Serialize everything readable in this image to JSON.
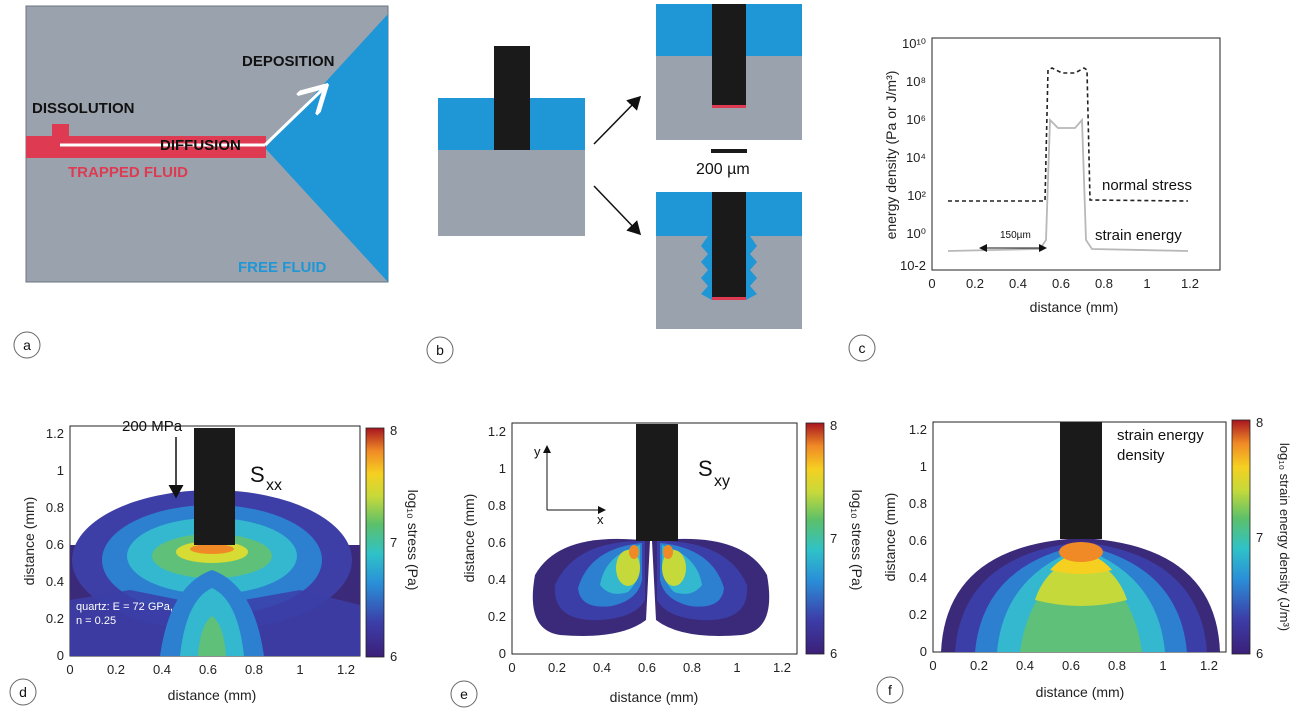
{
  "panel_letters": [
    "a",
    "b",
    "c",
    "d",
    "e",
    "f"
  ],
  "panel_a": {
    "labels": {
      "dissolution": "DISSOLUTION",
      "diffusion": "DIFFUSION",
      "deposition": "DEPOSITION",
      "trapped_fluid": "TRAPPED FLUID",
      "free_fluid": "FREE FLUID"
    },
    "colors": {
      "solid": "#9aa3ad",
      "trapped": "#de3b52",
      "free": "#1f96d6"
    }
  },
  "panel_b": {
    "scale_bar": "200 µm",
    "colors": {
      "fluid": "#1f96d6",
      "solid": "#9aa3ad",
      "indenter": "#1a1a1a",
      "contact": "#de3b52"
    }
  },
  "panel_c": {
    "ylabel": "energy density (Pa or J/m³)",
    "xlabel": "distance (mm)",
    "x_ticks": [
      "0",
      "0.2",
      "0.4",
      "0.6",
      "0.8",
      "1",
      "1.2"
    ],
    "y_ticks": [
      "10-2",
      "10⁰",
      "10²",
      "10⁴",
      "10⁶",
      "10⁸",
      "10¹⁰"
    ],
    "annotation_width": "150µm",
    "series_labels": {
      "normal": "normal stress",
      "strain": "strain energy"
    }
  },
  "panel_d": {
    "load": "200 MPa",
    "symbol": "S",
    "subscript": "xx",
    "note_line1": "quartz: E = 72 GPa,",
    "note_line2": "n = 0.25",
    "colorbar_label": "log₁₀ stress (Pa)",
    "colorbar_ticks": [
      "8",
      "7",
      "6"
    ],
    "xlabel": "distance (mm)",
    "ylabel": "distance (mm)",
    "x_ticks": [
      "0",
      "0.2",
      "0.4",
      "0.6",
      "0.8",
      "1",
      "1.2"
    ],
    "y_ticks": [
      "0",
      "0.2",
      "0.4",
      "0.6",
      "0.8",
      "1",
      "1.2"
    ]
  },
  "panel_e": {
    "symbol": "S",
    "subscript": "xy",
    "axis_x": "x",
    "axis_y": "y",
    "colorbar_label": "log₁₀ stress (Pa)",
    "colorbar_ticks": [
      "8",
      "7",
      "6"
    ],
    "xlabel": "distance (mm)",
    "ylabel": "distance (mm)",
    "x_ticks": [
      "0",
      "0.2",
      "0.4",
      "0.6",
      "0.8",
      "1",
      "1.2"
    ],
    "y_ticks": [
      "0",
      "0.2",
      "0.4",
      "0.6",
      "0.8",
      "1",
      "1.2"
    ]
  },
  "panel_f": {
    "title_line1": "strain energy",
    "title_line2": "density",
    "colorbar_label": "log₁₀ strain energy density (J/m³)",
    "colorbar_ticks": [
      "8",
      "7",
      "6"
    ],
    "xlabel": "distance (mm)",
    "ylabel": "distance (mm)",
    "x_ticks": [
      "0",
      "0.2",
      "0.4",
      "0.6",
      "0.8",
      "1",
      "1.2"
    ],
    "y_ticks": [
      "0",
      "0.2",
      "0.4",
      "0.6",
      "0.8",
      "1",
      "1.2"
    ]
  }
}
